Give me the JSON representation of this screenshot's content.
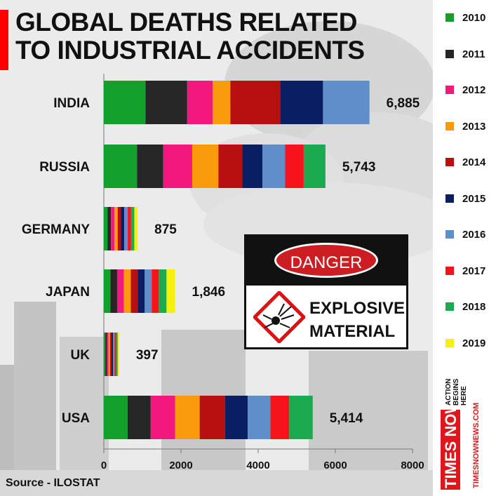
{
  "title_lines": [
    "GLOBAL DEATHS RELATED",
    "TO INDUSTRIAL ACCIDENTS"
  ],
  "source": "Source - ILOSTAT",
  "sign": {
    "danger": "DANGER",
    "line1": "EXPLOSIVE",
    "line2": "MATERIAL"
  },
  "brand": {
    "tagline": [
      "ACTION",
      "BEGINS",
      "HERE"
    ],
    "logo": "TIMES NOW",
    "url": "TIMESNOWNEWS.COM"
  },
  "chart_data": {
    "type": "bar",
    "orientation": "horizontal",
    "stacked": true,
    "title": "GLOBAL DEATHS RELATED TO INDUSTRIAL ACCIDENTS",
    "categories": [
      "INDIA",
      "RUSSIA",
      "GERMANY",
      "JAPAN",
      "UK",
      "USA"
    ],
    "totals": [
      "6,885",
      "5,743",
      "875",
      "1,846",
      "397",
      "5,414"
    ],
    "xlim": [
      0,
      8000
    ],
    "xticks": [
      0,
      2000,
      4000,
      6000,
      8000
    ],
    "legend_position": "right",
    "series": [
      {
        "name": "2010",
        "color": "#11a12b",
        "values": [
          1080,
          860,
          95,
          170,
          40,
          615
        ]
      },
      {
        "name": "2011",
        "color": "#262626",
        "values": [
          1080,
          680,
          90,
          175,
          40,
          600
        ]
      },
      {
        "name": "2012",
        "color": "#f2187d",
        "values": [
          660,
          750,
          90,
          175,
          40,
          630
        ]
      },
      {
        "name": "2013",
        "color": "#f99b0c",
        "values": [
          460,
          680,
          85,
          180,
          40,
          640
        ]
      },
      {
        "name": "2014",
        "color": "#b80f0f",
        "values": [
          1290,
          620,
          85,
          180,
          40,
          655
        ]
      },
      {
        "name": "2015",
        "color": "#0a1f63",
        "values": [
          1110,
          520,
          85,
          180,
          40,
          590
        ]
      },
      {
        "name": "2016",
        "color": "#5f8fc8",
        "values": [
          1205,
          590,
          90,
          180,
          40,
          585
        ]
      },
      {
        "name": "2017",
        "color": "#f4141a",
        "values": [
          0,
          480,
          85,
          185,
          40,
          490
        ]
      },
      {
        "name": "2018",
        "color": "#1aaa50",
        "values": [
          0,
          563,
          85,
          200,
          40,
          609
        ]
      },
      {
        "name": "2019",
        "color": "#f6f00f",
        "values": [
          0,
          0,
          85,
          221,
          37,
          0
        ]
      }
    ]
  }
}
